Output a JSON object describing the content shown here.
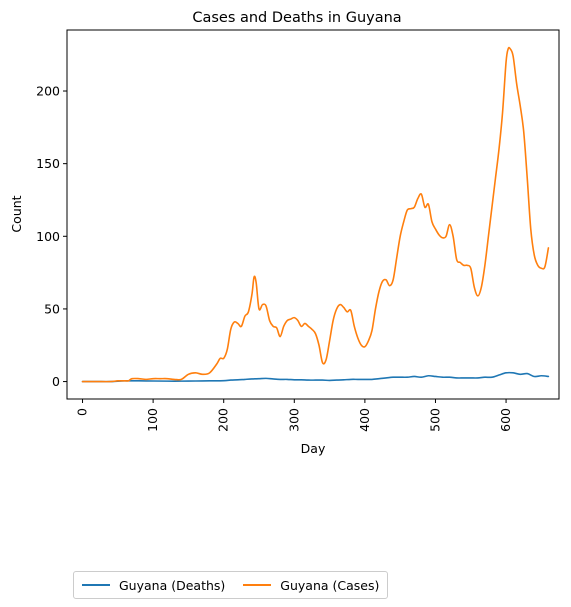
{
  "chart_data": {
    "type": "line",
    "title": "Cases and Deaths in Guyana",
    "xlabel": "Day",
    "ylabel": "Count",
    "xlim": [
      -22,
      675
    ],
    "ylim": [
      -12,
      242
    ],
    "xticks": [
      0,
      100,
      200,
      300,
      400,
      500,
      600
    ],
    "yticks": [
      0,
      50,
      100,
      150,
      200
    ],
    "legend_position": "bottom-left-outside",
    "series": [
      {
        "name": "Guyana (Deaths)",
        "color": "#1f77b4",
        "x": [
          0,
          20,
          40,
          60,
          80,
          100,
          120,
          140,
          160,
          180,
          200,
          210,
          220,
          230,
          240,
          250,
          260,
          270,
          280,
          290,
          300,
          310,
          320,
          330,
          340,
          350,
          360,
          370,
          380,
          390,
          400,
          410,
          420,
          430,
          440,
          450,
          460,
          470,
          480,
          490,
          500,
          510,
          520,
          530,
          540,
          550,
          560,
          570,
          580,
          590,
          600,
          610,
          620,
          630,
          640,
          650,
          660
        ],
        "y": [
          0,
          0,
          0,
          0.5,
          0.5,
          0.4,
          0.3,
          0.3,
          0.4,
          0.5,
          0.6,
          1.0,
          1.2,
          1.5,
          1.8,
          2.0,
          2.2,
          1.8,
          1.5,
          1.5,
          1.2,
          1.2,
          1.0,
          1.0,
          1.0,
          0.8,
          1.0,
          1.2,
          1.5,
          1.5,
          1.5,
          1.5,
          2.0,
          2.5,
          3.0,
          3.0,
          3.0,
          3.5,
          3.0,
          4.0,
          3.5,
          3.0,
          3.0,
          2.5,
          2.5,
          2.5,
          2.5,
          3.0,
          3.0,
          4.5,
          6.0,
          6.0,
          5.0,
          5.5,
          3.5,
          4.0,
          3.5
        ]
      },
      {
        "name": "Guyana (Cases)",
        "color": "#ff7f0e",
        "x": [
          0,
          20,
          40,
          50,
          60,
          65,
          70,
          80,
          90,
          100,
          110,
          120,
          130,
          140,
          150,
          160,
          170,
          180,
          190,
          195,
          200,
          205,
          210,
          215,
          220,
          225,
          230,
          235,
          240,
          243,
          246,
          250,
          255,
          260,
          265,
          270,
          275,
          280,
          285,
          290,
          295,
          300,
          305,
          310,
          315,
          320,
          325,
          330,
          335,
          340,
          345,
          350,
          355,
          360,
          365,
          370,
          375,
          380,
          385,
          390,
          395,
          400,
          405,
          410,
          415,
          420,
          425,
          430,
          435,
          440,
          445,
          450,
          455,
          460,
          465,
          470,
          475,
          480,
          485,
          490,
          495,
          500,
          505,
          510,
          515,
          520,
          525,
          530,
          535,
          540,
          545,
          550,
          555,
          560,
          565,
          570,
          575,
          580,
          585,
          590,
          595,
          600,
          603,
          606,
          610,
          615,
          620,
          625,
          630,
          635,
          640,
          645,
          650,
          655,
          660
        ],
        "y": [
          0,
          0,
          0,
          0.5,
          0.5,
          0.5,
          2,
          2,
          1.5,
          2,
          2,
          2,
          1.5,
          1.5,
          5,
          6,
          5,
          6,
          12,
          16,
          16,
          22,
          36,
          41,
          40,
          38,
          45,
          48,
          60,
          72,
          68,
          50,
          53,
          52,
          42,
          38,
          37,
          31,
          38,
          42,
          43,
          44,
          42,
          38,
          40,
          38,
          36,
          33,
          25,
          13,
          15,
          28,
          42,
          50,
          53,
          51,
          48,
          49,
          38,
          30,
          25,
          24,
          28,
          35,
          50,
          62,
          69,
          70,
          66,
          70,
          85,
          100,
          110,
          118,
          119,
          120,
          126,
          129,
          120,
          122,
          110,
          105,
          101,
          99,
          100,
          108,
          100,
          84,
          82,
          80,
          80,
          78,
          65,
          59,
          65,
          80,
          100,
          120,
          140,
          160,
          185,
          220,
          229,
          229,
          224,
          205,
          190,
          172,
          140,
          105,
          87,
          80,
          78,
          79,
          92
        ]
      }
    ]
  }
}
